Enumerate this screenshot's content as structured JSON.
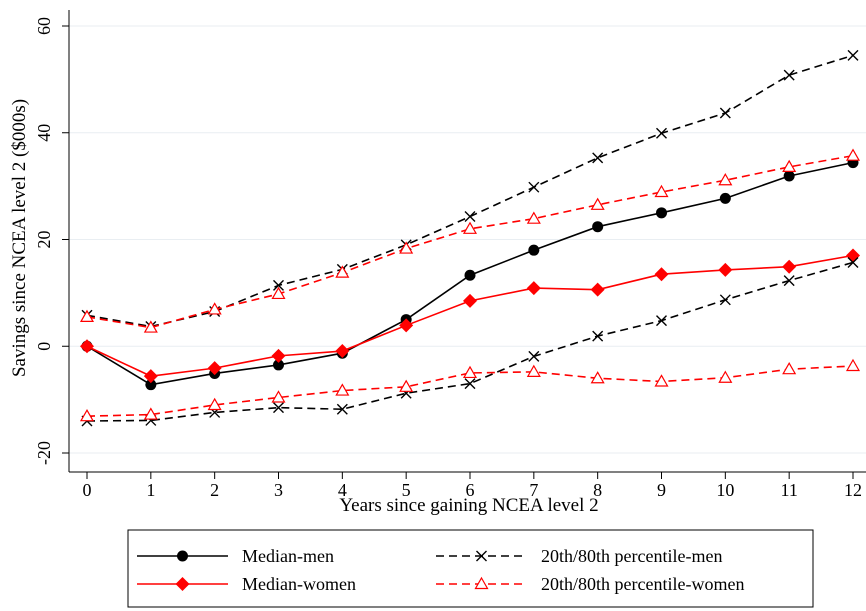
{
  "chart_data": {
    "type": "line",
    "xlabel": "Years since gaining NCEA level 2",
    "ylabel": "Savings since NCEA level 2 ($000s)",
    "xlim": [
      0,
      12
    ],
    "ylim": [
      -20,
      60
    ],
    "xticks": [
      0,
      1,
      2,
      3,
      4,
      5,
      6,
      7,
      8,
      9,
      10,
      11,
      12
    ],
    "yticks": [
      -20,
      0,
      20,
      40,
      60
    ],
    "grid": "horizontal",
    "legend_position": "bottom",
    "x": [
      0,
      1,
      2,
      3,
      4,
      5,
      6,
      7,
      8,
      9,
      10,
      11,
      12
    ],
    "series": [
      {
        "name": "Median-men",
        "color": "#000000",
        "dash": "solid",
        "marker": "filled-circle",
        "values": [
          0,
          -7.2,
          -5.1,
          -3.5,
          -1.3,
          5.0,
          13.3,
          18.0,
          22.4,
          25.0,
          27.7,
          31.9,
          34.4
        ]
      },
      {
        "name": "Median-women",
        "color": "#ff0000",
        "dash": "solid",
        "marker": "filled-diamond",
        "values": [
          0,
          -5.6,
          -4.1,
          -1.8,
          -0.9,
          3.9,
          8.5,
          10.9,
          10.6,
          13.5,
          14.3,
          14.9,
          17.0
        ]
      },
      {
        "name": "20th/80th percentile-men",
        "color": "#000000",
        "dash": "dashed",
        "marker": "x",
        "values": [
          5.8,
          3.7,
          6.5,
          11.4,
          14.4,
          19.0,
          24.3,
          29.8,
          35.3,
          39.9,
          43.7,
          50.8,
          54.5
        ]
      },
      {
        "name": "",
        "color": "#000000",
        "dash": "dashed",
        "marker": "x",
        "values": [
          -14.0,
          -13.9,
          -12.4,
          -11.5,
          -11.8,
          -8.8,
          -7.0,
          -1.9,
          1.9,
          4.8,
          8.7,
          12.3,
          15.7
        ]
      },
      {
        "name": "20th/80th percentile-women",
        "color": "#ff0000",
        "dash": "dashed",
        "marker": "hollow-triangle",
        "values": [
          5.5,
          3.5,
          6.9,
          9.8,
          13.8,
          18.3,
          22.0,
          23.9,
          26.5,
          28.9,
          31.1,
          33.6,
          35.7
        ]
      },
      {
        "name": "",
        "color": "#ff0000",
        "dash": "dashed",
        "marker": "hollow-triangle",
        "values": [
          -13.1,
          -12.8,
          -11.0,
          -9.6,
          -8.3,
          -7.6,
          -5.0,
          -4.8,
          -6.0,
          -6.6,
          -5.9,
          -4.3,
          -3.7
        ]
      }
    ]
  }
}
